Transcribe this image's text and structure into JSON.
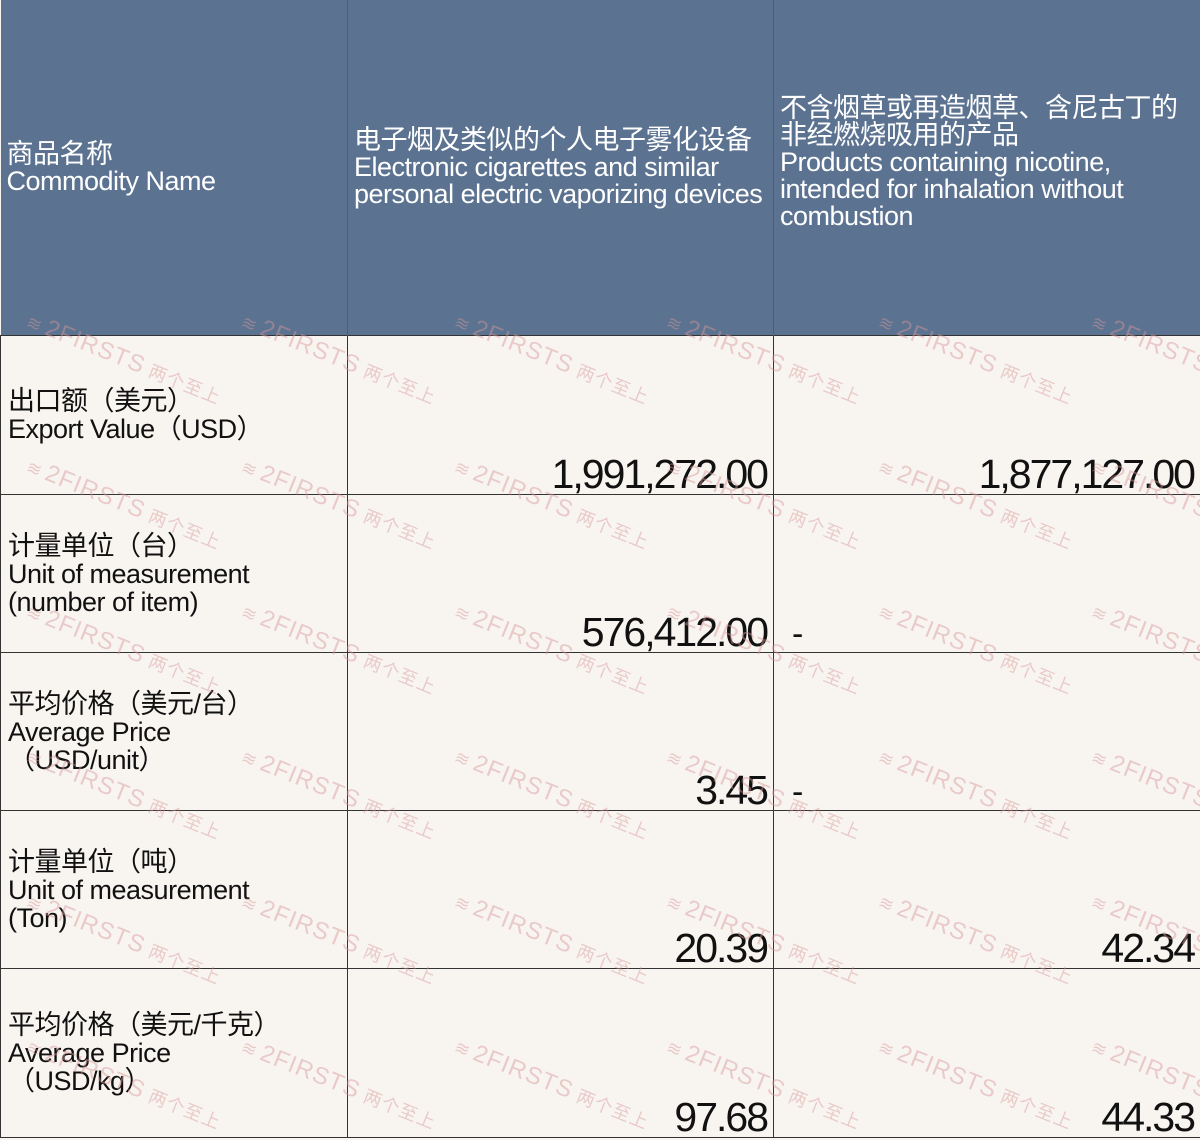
{
  "header": {
    "col1": {
      "cn": "商品名称",
      "en": "Commodity Name"
    },
    "col2": {
      "cn": "电子烟及类似的个人电子雾化设备",
      "en": "Electronic cigarettes and similar personal electric vaporizing devices"
    },
    "col3": {
      "cn": "不含烟草或再造烟草、含尼古丁的非经燃烧吸用的产品",
      "en": "Products containing nicotine, intended for inhalation without combustion"
    }
  },
  "rows": [
    {
      "cn": "出口额（美元）",
      "en": " Export Value（USD）",
      "en2": "",
      "v1": "1,991,272.00",
      "v2": "1,877,127.00"
    },
    {
      "cn": "计量单位（台）",
      "en": "Unit of measurement",
      "en2": "(number of item)",
      "v1": "576,412.00",
      "v2": "-"
    },
    {
      "cn": "平均价格（美元/台）",
      "en": "Average Price",
      "en2": "（USD/unit）",
      "v1": "3.45",
      "v2": "-"
    },
    {
      "cn": "计量单位（吨）",
      "en": "Unit of measurement",
      "en2": "(Ton)",
      "v1": "20.39",
      "v2": "42.34"
    },
    {
      "cn": "平均价格（美元/千克）",
      "en": "Average Price",
      "en2": "（USD/kg）",
      "v1": "97.68",
      "v2": "44.33"
    }
  ],
  "watermark": {
    "brand": "2FIRSTS",
    "cn": "两个至上"
  },
  "colors": {
    "header_bg": "#5b7391",
    "cell_bg": "#f8f5f0",
    "watermark": "#d79696"
  }
}
